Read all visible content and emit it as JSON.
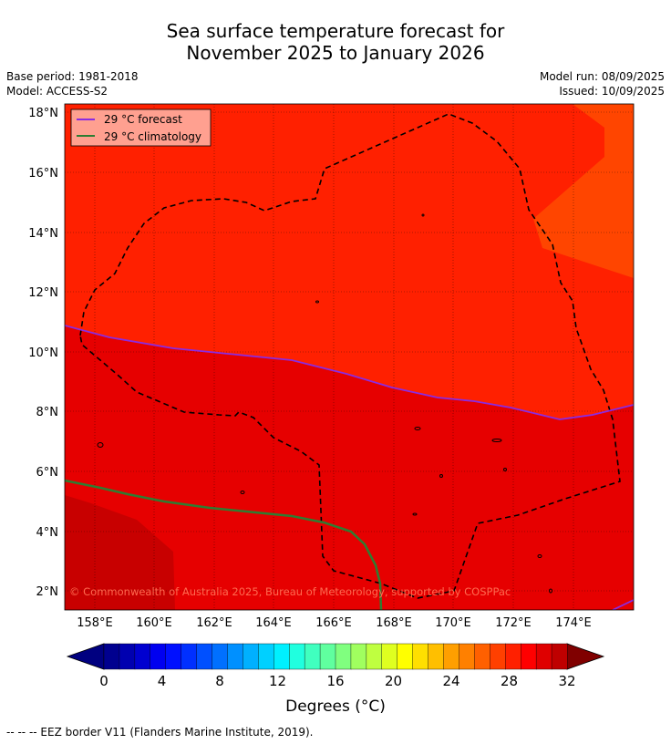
{
  "title_line1": "Sea surface temperature forecast for",
  "title_line2": "November 2025 to January 2026",
  "base_period": "Base period: 1981-2018",
  "model": "Model: ACCESS-S2",
  "model_run": "Model run: 08/09/2025",
  "issued": "Issued: 10/09/2025",
  "legend": {
    "forecast": "29 °C  forecast",
    "climatology": "29 °C  climatology"
  },
  "copyright": "© Commonwealth of Australia 2025, Bureau of Meteorology, supported by COSPPac",
  "lat_labels": [
    "18°N",
    "16°N",
    "14°N",
    "12°N",
    "10°N",
    "8°N",
    "6°N",
    "4°N",
    "2°N"
  ],
  "lon_labels": [
    "158°E",
    "160°E",
    "162°E",
    "164°E",
    "166°E",
    "168°E",
    "170°E",
    "172°E",
    "174°E"
  ],
  "colorbar": {
    "ticks": [
      "0",
      "4",
      "8",
      "12",
      "16",
      "20",
      "24",
      "28",
      "32"
    ],
    "label": "Degrees (°C)",
    "colors": [
      "#00008f",
      "#0000b0",
      "#0000d0",
      "#0000f0",
      "#0010ff",
      "#0030ff",
      "#0050ff",
      "#0070ff",
      "#0090ff",
      "#00b0ff",
      "#00d0ff",
      "#00f0ff",
      "#20ffdf",
      "#40ffbf",
      "#60ff9f",
      "#80ff7f",
      "#a0ff5f",
      "#bfff40",
      "#dfff20",
      "#ffff00",
      "#ffdf00",
      "#ffbf00",
      "#ff9f00",
      "#ff8000",
      "#ff6000",
      "#ff4000",
      "#ff2000",
      "#ff0000",
      "#df0000",
      "#bf0000"
    ],
    "low_color": "#000080",
    "high_color": "#800000"
  },
  "map_colors": {
    "orange": "#ff4500",
    "red_orange": "#ff2000",
    "red": "#e60000",
    "dark_red": "#c80000",
    "forecast_line": "#8a2be2",
    "climatology_line": "#2e7d32"
  },
  "footer": "-- -- -- EEZ border V11 (Flanders Marine Institute, 2019)."
}
